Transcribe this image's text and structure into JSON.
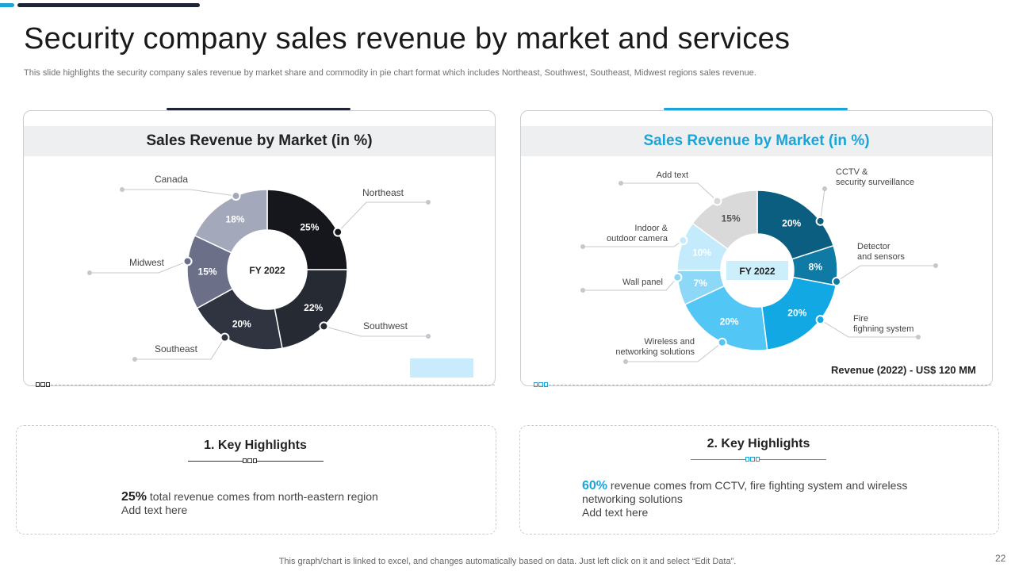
{
  "slide": {
    "title": "Security company sales revenue by market and services",
    "subtitle": "This slide highlights the security company sales revenue by market share and commodity in pie chart format which includes Northeast, Southwest, Southeast, Midwest regions sales revenue.",
    "footer": "This graph/chart is linked to excel,  and changes automatically based on data. Just left click on it and select “Edit Data”.",
    "page_number": "22"
  },
  "colors": {
    "accent": "#1aa4d8",
    "dark": "#1d2433"
  },
  "chart_data": [
    {
      "type": "pie",
      "title": "Sales Revenue by Market (in %)",
      "center_label": "FY 2022",
      "categories": [
        "Northeast",
        "Southwest",
        "Southeast",
        "Midwest",
        "Canada"
      ],
      "values": [
        25,
        22,
        20,
        15,
        18
      ],
      "value_labels": [
        "25%",
        "22%",
        "20%",
        "15%",
        "18%"
      ],
      "colors": [
        "#15171c",
        "#262a33",
        "#2f3440",
        "#6b7088",
        "#a4a8bb"
      ]
    },
    {
      "type": "pie",
      "title": "Sales Revenue by Market (in %)",
      "center_label": "FY 2022",
      "categories": [
        "CCTV & security surveillance",
        "Detector and sensors",
        "Fire fighning system",
        "Wireless and networking solutions",
        "Wall panel",
        "Indoor & outdoor camera",
        "Add text"
      ],
      "label_lines": [
        [
          "CCTV &",
          "security surveillance"
        ],
        [
          "Detector",
          "and sensors"
        ],
        [
          "Fire",
          "fighning system"
        ],
        [
          "Wireless and",
          "networking solutions"
        ],
        [
          "Wall panel"
        ],
        [
          "Indoor &",
          "outdoor camera"
        ],
        [
          "Add text"
        ]
      ],
      "values": [
        20,
        8,
        20,
        20,
        7,
        10,
        15
      ],
      "value_labels": [
        "20%",
        "8%",
        "20%",
        "20%",
        "7%",
        "10%",
        "15%"
      ],
      "colors": [
        "#0b5e80",
        "#0f7aa4",
        "#12a8e4",
        "#52c6f4",
        "#8dd8f6",
        "#c4ebfb",
        "#d9d9d9"
      ],
      "annotation": "Revenue (2022)  - US$ 120 MM"
    }
  ],
  "highlights": [
    {
      "title": "1. Key Highlights",
      "value": "25%",
      "text": " total revenue comes from north-eastern region",
      "add_text": "Add text here"
    },
    {
      "title": "2. Key Highlights",
      "value": "60%",
      "text": " revenue comes from CCTV, fire fighting system and wireless networking solutions",
      "add_text": "Add text here"
    }
  ]
}
